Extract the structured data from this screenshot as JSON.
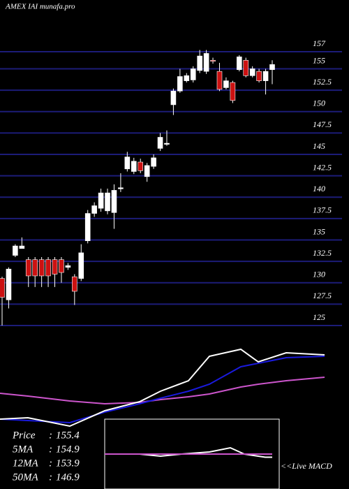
{
  "chart_data": [
    {
      "type": "candlestick",
      "title": "AMEX  IAI munafa.pro",
      "open": [
        130.5,
        128,
        133.2,
        134,
        132.7,
        132.7,
        132.7,
        132.7,
        132.7,
        132.7,
        131.8,
        130.7,
        130.5,
        134.9,
        138.1,
        138.7,
        138.4,
        138.2,
        141.1,
        143.3,
        143,
        144.1,
        142.4,
        143.6,
        145.7,
        146.3,
        150.8,
        152.4,
        153.6,
        153.7,
        154.8,
        154.7,
        156,
        154.7,
        152.8,
        153.4,
        154.9,
        156,
        154.2,
        154.7,
        153.6,
        154.9
      ],
      "high": [
        130.7,
        131.8,
        134.5,
        135.3,
        133,
        133,
        133,
        133,
        133,
        133,
        132.3,
        131,
        134.5,
        138.5,
        139.4,
        141,
        141,
        141.5,
        142.8,
        145.3,
        144.6,
        144.5,
        144,
        145,
        147.5,
        147.8,
        152.7,
        155,
        154.5,
        155.3,
        157.2,
        157.2,
        156.3,
        155.7,
        154,
        153.6,
        156.6,
        156.3,
        155.3,
        155,
        155,
        156
      ],
      "low": [
        125,
        127,
        133,
        134,
        129.5,
        129.5,
        129.5,
        129.5,
        129.5,
        130,
        131.5,
        127.4,
        130.2,
        134.6,
        137.7,
        138.3,
        138,
        136.3,
        140.6,
        143,
        142.7,
        142.8,
        141.8,
        143.3,
        145.4,
        146,
        149.6,
        152.2,
        153.4,
        153.4,
        154.5,
        154.4,
        155.6,
        152.4,
        152.6,
        151,
        154.7,
        154,
        154,
        153.4,
        152,
        153.2
      ],
      "close": [
        128.3,
        131.6,
        134.3,
        134.3,
        130.8,
        130.8,
        130.8,
        130.8,
        131,
        131.2,
        132,
        129,
        133.5,
        138.1,
        139,
        140.5,
        140.5,
        140.8,
        141.1,
        144.7,
        144.2,
        143.1,
        143.7,
        144.6,
        147,
        146.3,
        152.4,
        154.1,
        154.2,
        155,
        156.5,
        156.8,
        155.9,
        152.6,
        153.6,
        151.3,
        156.4,
        154.2,
        155,
        153.6,
        154.7,
        155.5
      ],
      "up_color": "#ffffff",
      "down_color": "#cc1111",
      "ylim": [
        125,
        157
      ],
      "yticks": [
        125,
        127.5,
        130,
        132.5,
        135,
        137.5,
        140,
        142.5,
        145,
        147.5,
        150,
        152.5,
        155,
        157
      ],
      "grid": true
    },
    {
      "type": "line",
      "ylim": [
        0,
        130
      ],
      "x": [
        0,
        40,
        100,
        150,
        200,
        230,
        270,
        300,
        345,
        370,
        410,
        465
      ],
      "series": [
        {
          "color": "#cc55cc",
          "values": [
            57,
            53,
            46,
            42,
            44,
            48,
            52,
            56,
            66,
            70,
            75,
            80
          ]
        },
        {
          "color": "#1a1adc",
          "values": [
            20,
            18,
            15,
            30,
            42,
            50,
            60,
            70,
            95,
            100,
            108,
            110
          ]
        },
        {
          "color": "#ffffff",
          "values": [
            20,
            22,
            10,
            32,
            45,
            60,
            75,
            110,
            120,
            102,
            115,
            112
          ]
        }
      ]
    },
    {
      "type": "macd",
      "title": "<<Live MACD",
      "legend_values": [
        {
          "name": "Price",
          "value": 155.4
        },
        {
          "name": "5MA",
          "value": 154.9
        },
        {
          "name": "12MA",
          "value": 153.9
        },
        {
          "name": "50MA",
          "value": 146.9
        }
      ],
      "ylim": [
        -10,
        10
      ],
      "x": [
        150,
        200,
        230,
        260,
        300,
        330,
        350,
        380,
        390
      ],
      "series": [
        {
          "color": "#ffffff",
          "values": [
            0,
            0,
            -1,
            0,
            1,
            3,
            0,
            -1.5,
            -1.5
          ]
        },
        {
          "color": "#cc55cc",
          "values": [
            0,
            0,
            0,
            0,
            0,
            0,
            0,
            0,
            0
          ]
        }
      ]
    }
  ]
}
